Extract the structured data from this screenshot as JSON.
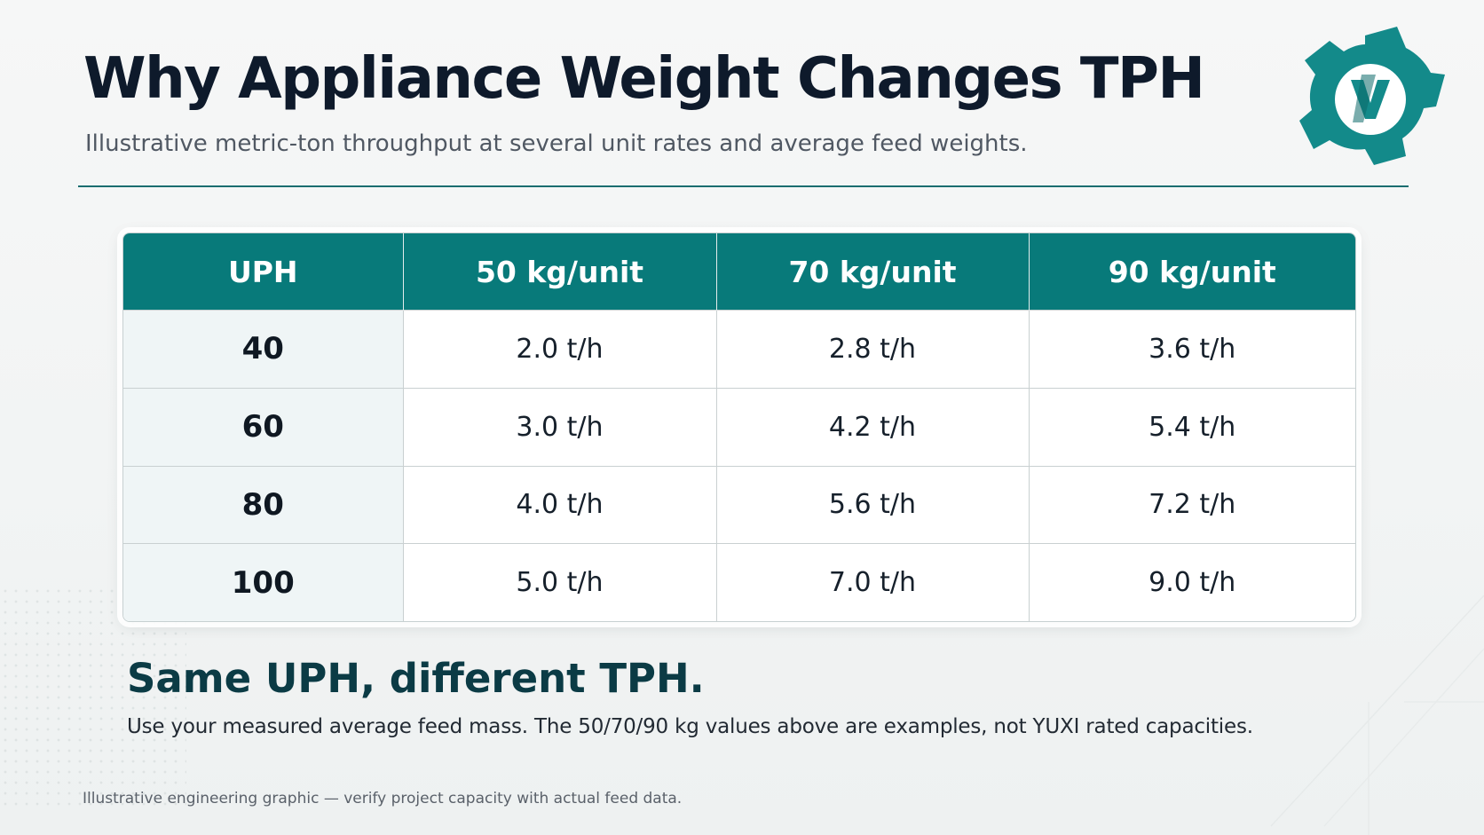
{
  "header": {
    "title": "Why Appliance Weight Changes TPH",
    "subtitle": "Illustrative metric-ton throughput at several unit rates and average feed weights."
  },
  "logo": {
    "icon": "gear-logo-icon",
    "color": "#138a8a"
  },
  "table": {
    "columns": [
      "UPH",
      "50 kg/unit",
      "70 kg/unit",
      "90 kg/unit"
    ],
    "rows": [
      {
        "uph": "40",
        "cells": [
          "2.0 t/h",
          "2.8 t/h",
          "3.6 t/h"
        ]
      },
      {
        "uph": "60",
        "cells": [
          "3.0 t/h",
          "4.2 t/h",
          "5.4 t/h"
        ]
      },
      {
        "uph": "80",
        "cells": [
          "4.0 t/h",
          "5.6 t/h",
          "7.2 t/h"
        ]
      },
      {
        "uph": "100",
        "cells": [
          "5.0 t/h",
          "7.0 t/h",
          "9.0 t/h"
        ]
      }
    ]
  },
  "callout": {
    "heading": "Same UPH, different TPH.",
    "text": "Use your measured average feed mass. The 50/70/90 kg values above are examples, not YUXI rated capacities."
  },
  "footnote": "Illustrative engineering graphic — verify project capacity with actual feed data.",
  "colors": {
    "accent": "#087a7a",
    "heading": "#0e1a2b",
    "callout": "#0b3b45"
  }
}
